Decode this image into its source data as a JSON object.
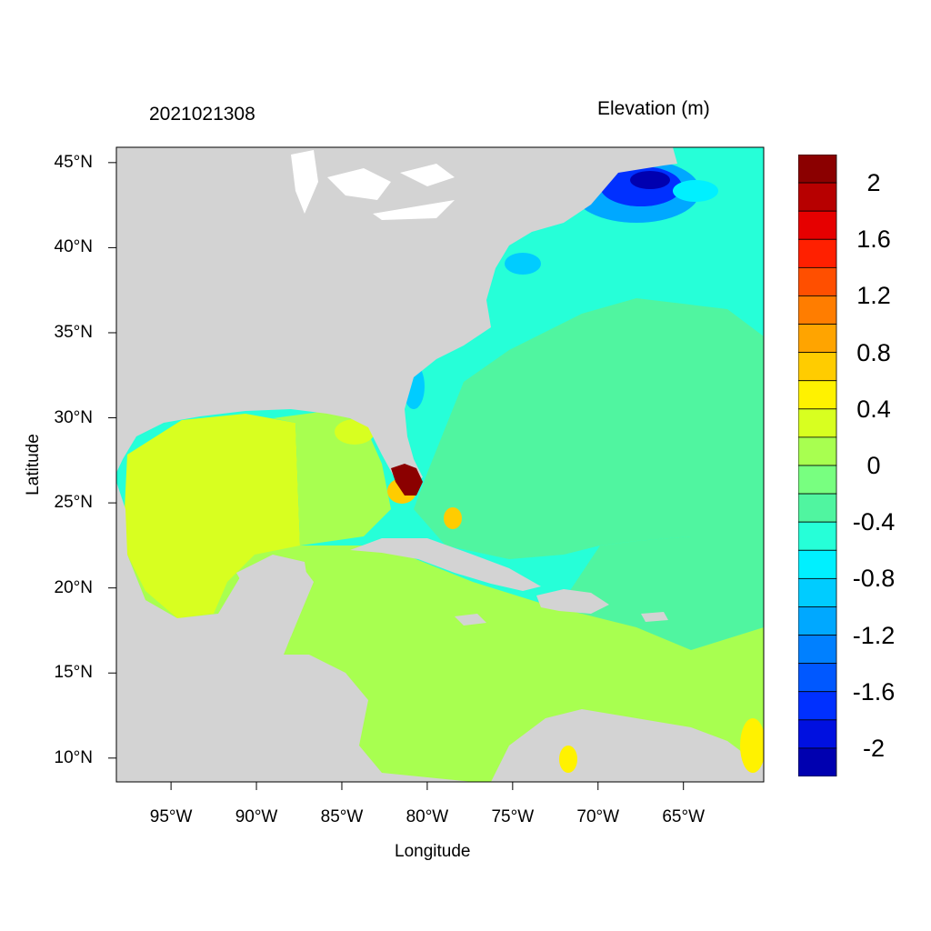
{
  "header": {
    "date_label": "2021021308",
    "variable_label": "Elevation (m)"
  },
  "axes": {
    "xlabel": "Longitude",
    "ylabel": "Latitude",
    "xlim": [
      -98.2,
      -60.3
    ],
    "ylim": [
      8.6,
      45.9
    ],
    "x_ticks": [
      {
        "value": -95,
        "label": "95°W"
      },
      {
        "value": -90,
        "label": "90°W"
      },
      {
        "value": -85,
        "label": "85°W"
      },
      {
        "value": -80,
        "label": "80°W"
      },
      {
        "value": -75,
        "label": "75°W"
      },
      {
        "value": -70,
        "label": "70°W"
      },
      {
        "value": -65,
        "label": "65°W"
      }
    ],
    "y_ticks": [
      {
        "value": 45,
        "label": "45°N"
      },
      {
        "value": 40,
        "label": "40°N"
      },
      {
        "value": 35,
        "label": "35°N"
      },
      {
        "value": 30,
        "label": "30°N"
      },
      {
        "value": 25,
        "label": "25°N"
      },
      {
        "value": 20,
        "label": "20°N"
      },
      {
        "value": 15,
        "label": "15°N"
      },
      {
        "value": 10,
        "label": "10°N"
      }
    ]
  },
  "colorbar": {
    "labels": [
      "2",
      "1.6",
      "1.2",
      "0.8",
      "0.4",
      "0",
      "-0.4",
      "-0.8",
      "-1.2",
      "-1.6",
      "-2"
    ],
    "colors": [
      "#8b0000",
      "#b70000",
      "#e60000",
      "#ff2000",
      "#ff4f00",
      "#ff7d00",
      "#ffa400",
      "#ffcc00",
      "#fff200",
      "#d8ff20",
      "#a8ff50",
      "#78ff80",
      "#50f5a0",
      "#26ffd8",
      "#00f0ff",
      "#00ccff",
      "#00a8ff",
      "#0080ff",
      "#0058ff",
      "#0030ff",
      "#0010e0",
      "#0000b0"
    ]
  },
  "map": {
    "land_color": "#d3d3d3",
    "regions": [
      {
        "name": "gulf-of-mexico-west",
        "color": "#d8ff20"
      },
      {
        "name": "caribbean-sea",
        "color": "#a8ff50"
      },
      {
        "name": "gulf-of-mexico-east",
        "color": "#a8ff50"
      },
      {
        "name": "atlantic-shelf",
        "color": "#26ffd8"
      },
      {
        "name": "atlantic-open",
        "color": "#50f5a0"
      },
      {
        "name": "gulf-of-maine",
        "color": "#0030ff"
      },
      {
        "name": "south-florida",
        "color": "#8b0000"
      }
    ]
  }
}
